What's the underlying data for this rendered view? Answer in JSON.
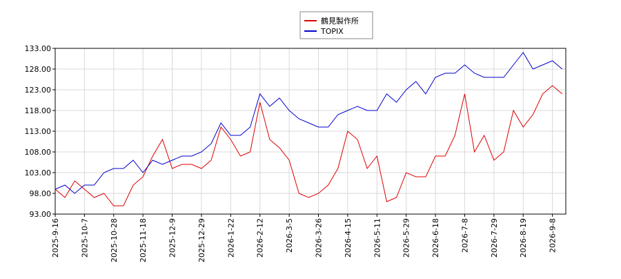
{
  "chart_data": {
    "type": "line",
    "x": [
      "2025-9-16",
      null,
      null,
      "2025-10-7",
      null,
      null,
      "2025-10-28",
      null,
      null,
      "2025-11-18",
      null,
      null,
      "2025-12-9",
      null,
      null,
      "2025-12-29",
      null,
      null,
      "2026-1-22",
      null,
      null,
      "2026-2-12",
      null,
      null,
      "2026-3-5",
      null,
      null,
      "2026-3-26",
      null,
      null,
      "2026-4-15",
      null,
      null,
      "2026-5-11",
      null,
      null,
      "2026-5-29",
      null,
      null,
      "2026-6-18",
      null,
      null,
      "2026-7-8",
      null,
      null,
      "2026-7-29",
      null,
      null,
      "2026-8-19",
      null,
      null,
      "2026-9-8",
      null
    ],
    "series": [
      {
        "name": "鶴見製作所",
        "color": "#dd0000",
        "values": [
          99,
          97,
          101,
          99,
          97,
          98,
          95,
          95,
          100,
          102,
          107,
          111,
          104,
          105,
          105,
          104,
          106,
          114,
          111,
          107,
          108,
          120,
          111,
          109,
          106,
          98,
          97,
          98,
          100,
          104,
          113,
          111,
          104,
          107,
          96,
          97,
          103,
          102,
          102,
          107,
          107,
          112,
          122,
          108,
          112,
          106,
          108,
          118,
          114,
          117,
          122,
          124,
          122
        ]
      },
      {
        "name": "TOPIX",
        "color": "#0000cc",
        "values": [
          99,
          100,
          98,
          100,
          100,
          103,
          104,
          104,
          106,
          103,
          106,
          105,
          106,
          107,
          107,
          108,
          110,
          115,
          112,
          112,
          114,
          122,
          119,
          121,
          118,
          116,
          115,
          114,
          114,
          117,
          118,
          119,
          118,
          118,
          122,
          120,
          123,
          125,
          122,
          126,
          127,
          127,
          129,
          127,
          126,
          126,
          126,
          129,
          132,
          128,
          129,
          130,
          128
        ]
      }
    ],
    "ylim": [
      93,
      133
    ],
    "yticks": [
      {
        "value": 93,
        "label": "93.00"
      },
      {
        "value": 98,
        "label": "98.00"
      },
      {
        "value": 103,
        "label": "103.00"
      },
      {
        "value": 108,
        "label": "108.00"
      },
      {
        "value": 113,
        "label": "113.00"
      },
      {
        "value": 118,
        "label": "118.00"
      },
      {
        "value": 123,
        "label": "123.00"
      },
      {
        "value": 128,
        "label": "128.00"
      },
      {
        "value": 133,
        "label": "133.00"
      }
    ],
    "grid": true
  }
}
